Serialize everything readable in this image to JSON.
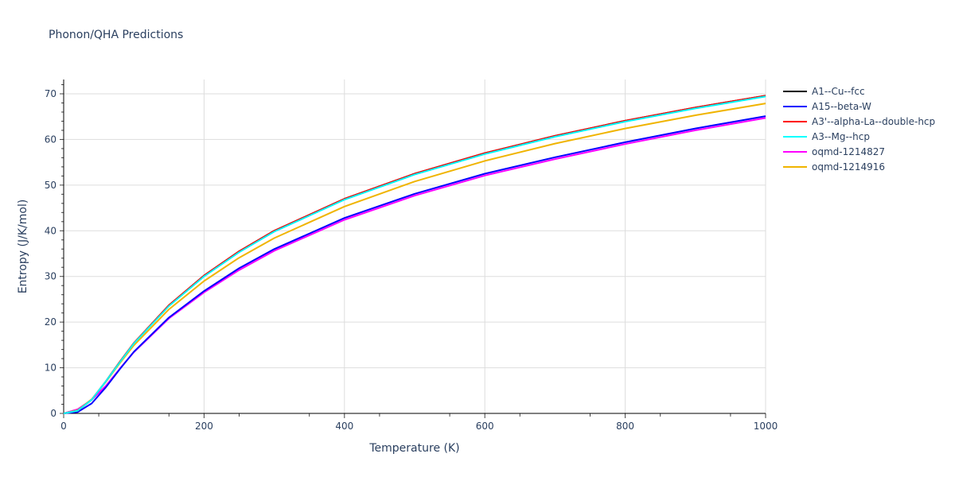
{
  "chart_data": {
    "type": "line",
    "title": "Phonon/QHA Predictions",
    "xlabel": "Temperature (K)",
    "ylabel": "Entropy (J/K/mol)",
    "xlim": [
      0,
      1000
    ],
    "ylim": [
      0,
      73
    ],
    "x_ticks": [
      0,
      200,
      400,
      600,
      800,
      1000
    ],
    "y_ticks": [
      0,
      10,
      20,
      30,
      40,
      50,
      60,
      70
    ],
    "grid": true,
    "legend_position": "right",
    "x": [
      0,
      20,
      40,
      60,
      80,
      100,
      150,
      200,
      250,
      300,
      400,
      500,
      600,
      700,
      800,
      900,
      1000
    ],
    "series": [
      {
        "name": "A1--Cu--fcc",
        "color": "#000000",
        "values": [
          0,
          0.6,
          3.0,
          7.0,
          11.3,
          15.4,
          23.7,
          30.2,
          35.5,
          40.0,
          47.0,
          52.5,
          57.0,
          60.8,
          64.1,
          67.0,
          69.6
        ]
      },
      {
        "name": "A15--beta-W",
        "color": "#0000ff",
        "values": [
          0,
          0.3,
          2.2,
          5.7,
          9.7,
          13.5,
          21.0,
          26.8,
          31.8,
          36.0,
          42.8,
          48.1,
          52.5,
          56.1,
          59.4,
          62.4,
          65.1
        ]
      },
      {
        "name": "A3'--alpha-La--double-hcp",
        "color": "#ff0000",
        "values": [
          0,
          0.6,
          3.0,
          7.0,
          11.3,
          15.4,
          23.7,
          30.2,
          35.5,
          40.0,
          47.0,
          52.5,
          57.0,
          60.8,
          64.1,
          67.0,
          69.6
        ]
      },
      {
        "name": "A3--Mg--hcp",
        "color": "#00ffff",
        "values": [
          0,
          0.6,
          3.0,
          7.0,
          11.2,
          15.3,
          23.5,
          30.0,
          35.3,
          39.8,
          46.8,
          52.3,
          56.8,
          60.6,
          63.9,
          66.8,
          69.4
        ]
      },
      {
        "name": "oqmd-1214827",
        "color": "#ff00ff",
        "values": [
          0,
          0.9,
          3.0,
          6.0,
          9.8,
          13.4,
          20.8,
          26.5,
          31.4,
          35.6,
          42.4,
          47.7,
          52.1,
          55.7,
          59.0,
          62.0,
          64.7
        ]
      },
      {
        "name": "oqmd-1214916",
        "color": "#f0b400",
        "values": [
          0,
          0.7,
          3.1,
          6.9,
          11.0,
          14.9,
          22.8,
          29.0,
          34.1,
          38.4,
          45.3,
          50.8,
          55.3,
          59.1,
          62.4,
          65.3,
          67.9
        ]
      }
    ]
  }
}
